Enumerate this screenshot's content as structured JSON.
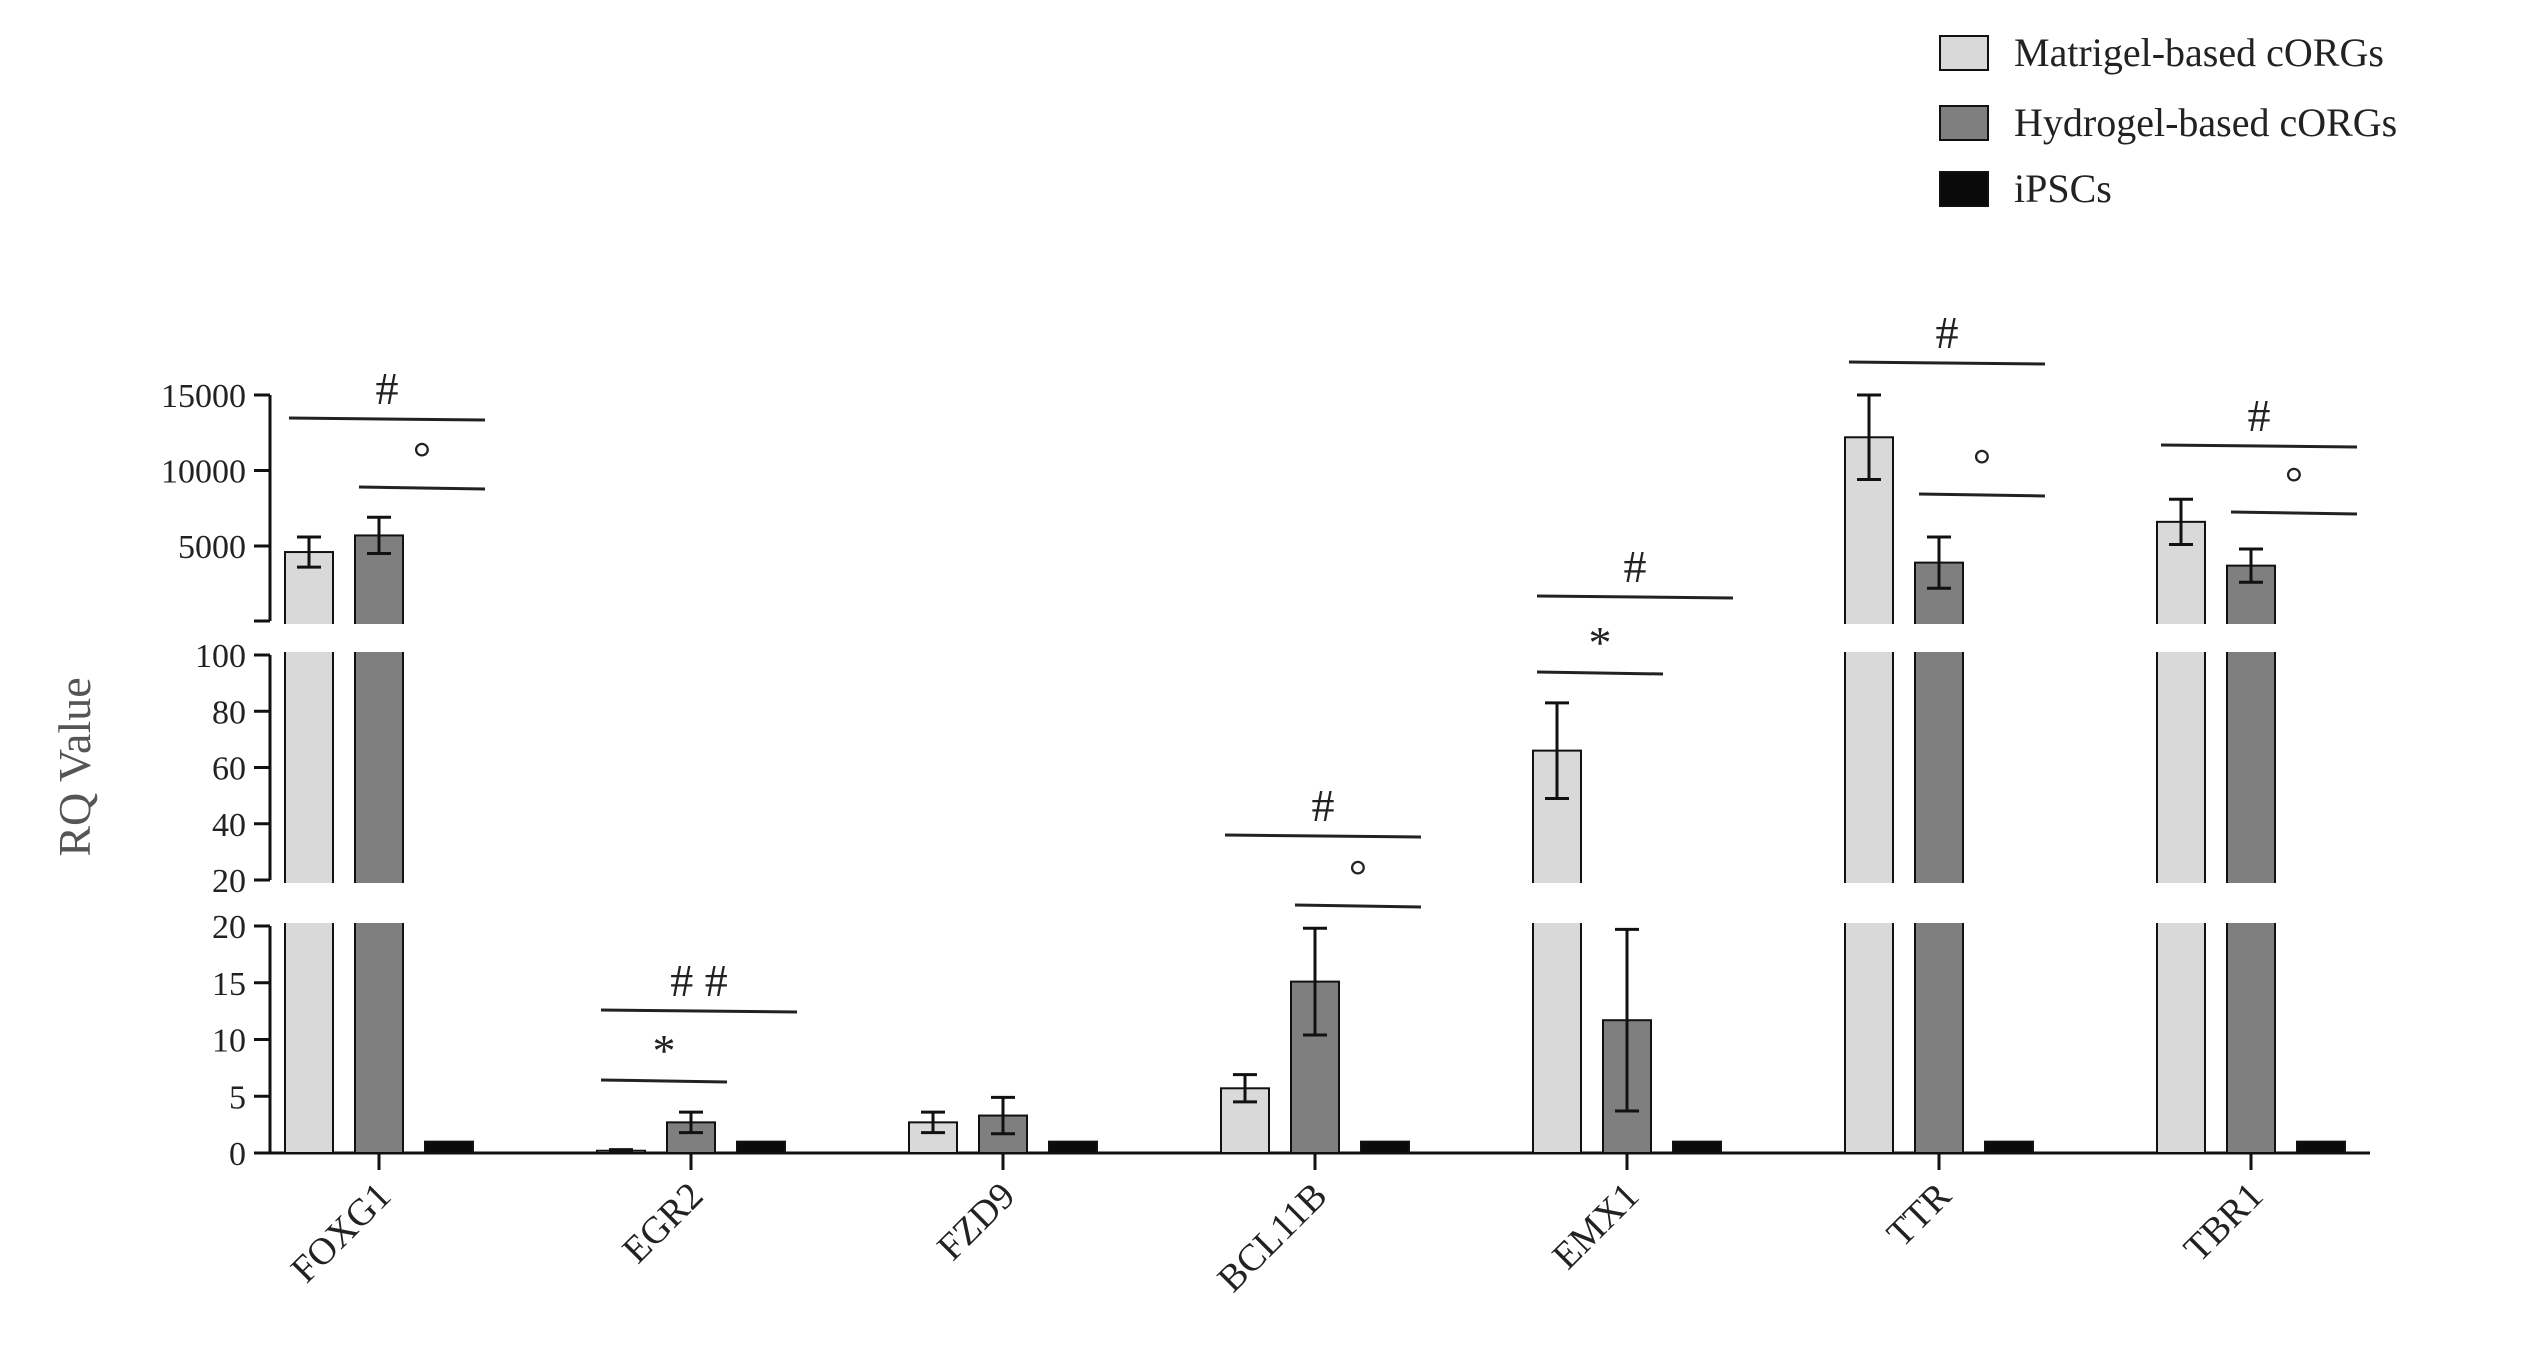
{
  "chart_data": {
    "type": "bar",
    "ylabel": "RQ Value",
    "categories": [
      "FOXG1",
      "EGR2",
      "FZD9",
      "BCL11B",
      "EMX1",
      "TTR",
      "TBR1"
    ],
    "series": [
      {
        "name": "Matrigel-based cORGs",
        "color": "#d9d9d9",
        "values": [
          4600,
          0.2,
          2.7,
          5.7,
          66,
          12200,
          6600
        ],
        "errors": [
          1000,
          0.1,
          0.9,
          1.2,
          17,
          2800,
          1500
        ]
      },
      {
        "name": "Hydrogel-based cORGs",
        "color": "#7f7f7f",
        "values": [
          5700,
          2.7,
          3.3,
          15.1,
          11.7,
          3900,
          3700
        ],
        "errors": [
          1200,
          0.9,
          1.6,
          4.7,
          8.0,
          1700,
          1100
        ]
      },
      {
        "name": "iPSCs",
        "color": "#0a0a0a",
        "values": [
          1,
          1,
          1,
          1,
          1,
          1,
          1
        ],
        "errors": [
          0,
          0,
          0,
          0,
          0,
          0,
          0
        ]
      }
    ],
    "axis_segments": [
      {
        "range": [
          0,
          20
        ],
        "ticks": [
          "0",
          "5",
          "10",
          "15",
          "20"
        ]
      },
      {
        "range": [
          20,
          100
        ],
        "ticks": [
          "20",
          "40",
          "60",
          "80",
          "100"
        ]
      },
      {
        "range": [
          0,
          15000
        ],
        "ticks": [
          "5000",
          "10000",
          "15000"
        ]
      }
    ],
    "legend_position": "top-right",
    "significance": [
      {
        "category": "FOXG1",
        "label": "#",
        "span": [
          0,
          2
        ]
      },
      {
        "category": "FOXG1",
        "label": "°",
        "span": [
          1,
          2
        ]
      },
      {
        "category": "EGR2",
        "label": "*",
        "span": [
          0,
          1
        ]
      },
      {
        "category": "EGR2",
        "label": "# #",
        "span": [
          0,
          2
        ]
      },
      {
        "category": "BCL11B",
        "label": "#",
        "span": [
          0,
          2
        ]
      },
      {
        "category": "BCL11B",
        "label": "°",
        "span": [
          1,
          2
        ]
      },
      {
        "category": "EMX1",
        "label": "*",
        "span": [
          0,
          1
        ]
      },
      {
        "category": "EMX1",
        "label": "#",
        "span": [
          0,
          2
        ]
      },
      {
        "category": "TTR",
        "label": "#",
        "span": [
          0,
          2
        ]
      },
      {
        "category": "TTR",
        "label": "°",
        "span": [
          1,
          2
        ]
      },
      {
        "category": "TBR1",
        "label": "#",
        "span": [
          0,
          2
        ]
      },
      {
        "category": "TBR1",
        "label": "°",
        "span": [
          1,
          2
        ]
      }
    ]
  }
}
